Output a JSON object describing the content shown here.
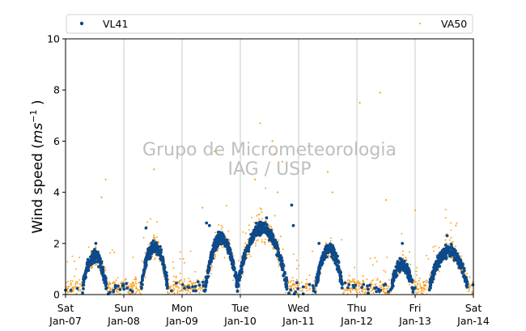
{
  "chart_data": {
    "type": "scatter",
    "ylabel_main": "Wind speed (",
    "ylabel_units": "ms",
    "ylabel_exp": "−1",
    "ylabel_close": ")",
    "ylim": [
      0,
      10
    ],
    "yticks": [
      "0",
      "2",
      "4",
      "6",
      "8",
      "10"
    ],
    "xlim_days": [
      0,
      7
    ],
    "xticks": [
      {
        "day": "Sat",
        "date": "Jan-07"
      },
      {
        "day": "Sun",
        "date": "Jan-08"
      },
      {
        "day": "Mon",
        "date": "Jan-09"
      },
      {
        "day": "Tue",
        "date": "Jan-10"
      },
      {
        "day": "Wed",
        "date": "Jan-11"
      },
      {
        "day": "Thu",
        "date": "Jan-12"
      },
      {
        "day": "Fri",
        "date": "Jan-13"
      },
      {
        "day": "Sat",
        "date": "Jan-14"
      }
    ],
    "grid": "vertical",
    "legend": "top",
    "watermark": [
      "Grupo de Micrometeorologia",
      "IAG / USP"
    ],
    "series": [
      {
        "name": "VL41",
        "color": "#0d4a8a",
        "marker": "dot",
        "daily_profile": [
          {
            "start": 0.3,
            "end": 0.7,
            "peak": 1.5
          },
          {
            "start": 1.3,
            "end": 1.75,
            "peak": 1.9
          },
          {
            "start": 2.4,
            "end": 2.95,
            "peak": 2.2
          },
          {
            "start": 2.95,
            "end": 3.8,
            "peak": 2.6
          },
          {
            "start": 4.3,
            "end": 4.75,
            "peak": 1.8
          },
          {
            "start": 5.6,
            "end": 5.95,
            "peak": 1.2
          },
          {
            "start": 6.25,
            "end": 6.9,
            "peak": 1.7
          }
        ],
        "points": [
          [
            3.88,
            3.5
          ],
          [
            3.91,
            2.7
          ],
          [
            2.42,
            2.8
          ],
          [
            2.47,
            2.7
          ],
          [
            3.45,
            3.0
          ],
          [
            1.38,
            2.6
          ],
          [
            6.55,
            2.3
          ],
          [
            5.78,
            2.0
          ],
          [
            4.35,
            2.0
          ],
          [
            0.52,
            2.0
          ]
        ]
      },
      {
        "name": "VA50",
        "color": "#ff9e1b",
        "marker": "small-dot",
        "points": [
          [
            0.62,
            3.8
          ],
          [
            0.69,
            4.5
          ],
          [
            1.52,
            4.9
          ],
          [
            2.35,
            3.4
          ],
          [
            3.25,
            4.5
          ],
          [
            3.34,
            6.7
          ],
          [
            3.55,
            6.0
          ],
          [
            3.59,
            5.5
          ],
          [
            3.72,
            5.2
          ],
          [
            4.5,
            4.8
          ],
          [
            4.58,
            4.0
          ],
          [
            5.05,
            7.5
          ],
          [
            5.4,
            7.9
          ],
          [
            5.5,
            3.7
          ],
          [
            6.0,
            3.3
          ],
          [
            6.7,
            2.7
          ],
          [
            2.56,
            5.6
          ],
          [
            3.64,
            4.0
          ]
        ]
      }
    ]
  }
}
